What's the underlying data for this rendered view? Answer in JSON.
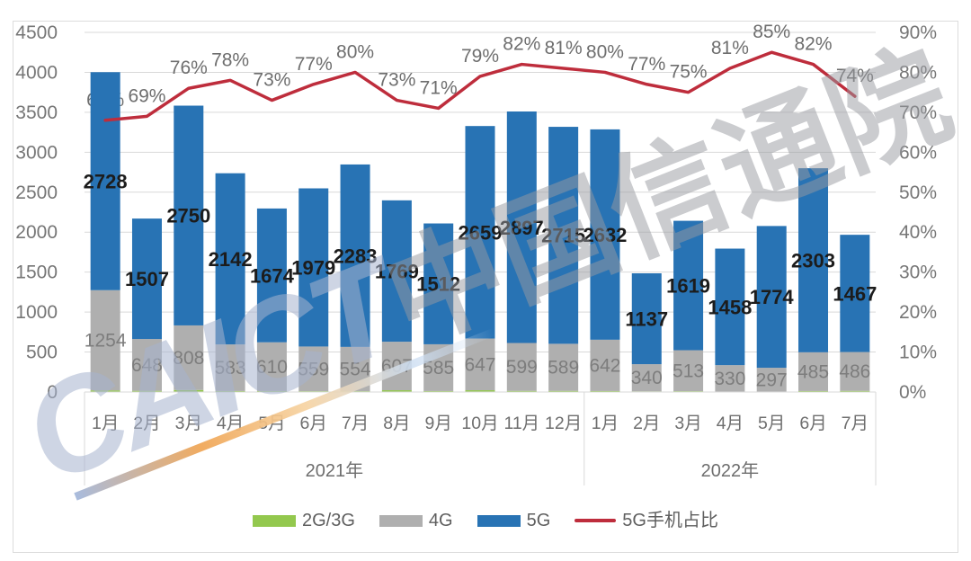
{
  "watermark": {
    "latin": "CAICT",
    "cjk": "中国信通院"
  },
  "colors": {
    "bar_5g": "#2873B4",
    "bar_4g": "#AFAFAF",
    "bar_2g3g": "#93C84E",
    "line_5g_share": "#BE2D3C",
    "grid": "#D9D9D9",
    "axis_text": "#767676",
    "pct_label": "#6E6E6E",
    "month_label": "#6E6E6E",
    "label_4g": "#7D7D7D",
    "label_5g": "#1C1C1C",
    "frame": "#DCDCDC"
  },
  "chart_data": {
    "type": "stacked-bar + line combo",
    "categories": [
      "1月",
      "2月",
      "3月",
      "4月",
      "5月",
      "6月",
      "7月",
      "8月",
      "9月",
      "10月",
      "11月",
      "12月",
      "1月",
      "2月",
      "3月",
      "4月",
      "5月",
      "6月",
      "7月"
    ],
    "year_groups": [
      {
        "label": "2021年",
        "months": 12
      },
      {
        "label": "2022年",
        "months": 7
      }
    ],
    "left_axis": {
      "min": 0,
      "max": 4500,
      "step": 500
    },
    "right_axis": {
      "min": 0,
      "max": 90,
      "step": 10,
      "suffix": "%"
    },
    "series": [
      {
        "name": "2G/3G",
        "type": "bar",
        "stacked": true,
        "labels_shown": false,
        "estimated_from_pixels": true,
        "values": [
          20,
          15,
          25,
          12,
          12,
          10,
          10,
          22,
          12,
          22,
          14,
          14,
          12,
          8,
          10,
          6,
          6,
          12,
          14
        ]
      },
      {
        "name": "4G",
        "type": "bar",
        "stacked": true,
        "labels_shown": true,
        "values": [
          1254,
          648,
          808,
          583,
          610,
          559,
          554,
          607,
          585,
          647,
          599,
          589,
          642,
          340,
          513,
          330,
          297,
          485,
          486
        ]
      },
      {
        "name": "5G",
        "type": "bar",
        "stacked": true,
        "labels_shown": true,
        "values": [
          2728,
          1507,
          2750,
          2142,
          1674,
          1979,
          2283,
          1769,
          1512,
          2659,
          2897,
          2715,
          2632,
          1137,
          1619,
          1458,
          1774,
          2303,
          1467
        ]
      },
      {
        "name": "5G手机占比",
        "type": "line",
        "axis": "right",
        "unit": "%",
        "labels_shown": true,
        "values": [
          68,
          69,
          76,
          78,
          73,
          77,
          80,
          73,
          71,
          79,
          82,
          81,
          80,
          77,
          75,
          81,
          85,
          82,
          74
        ]
      }
    ],
    "legend": {
      "items": [
        {
          "label": "2G/3G",
          "swatch": "bar",
          "color": "#93C84E"
        },
        {
          "label": "4G",
          "swatch": "bar",
          "color": "#AFAFAF"
        },
        {
          "label": "5G",
          "swatch": "bar",
          "color": "#2873B4"
        },
        {
          "label": "5G手机占比",
          "swatch": "line",
          "color": "#BE2D3C"
        }
      ]
    }
  }
}
